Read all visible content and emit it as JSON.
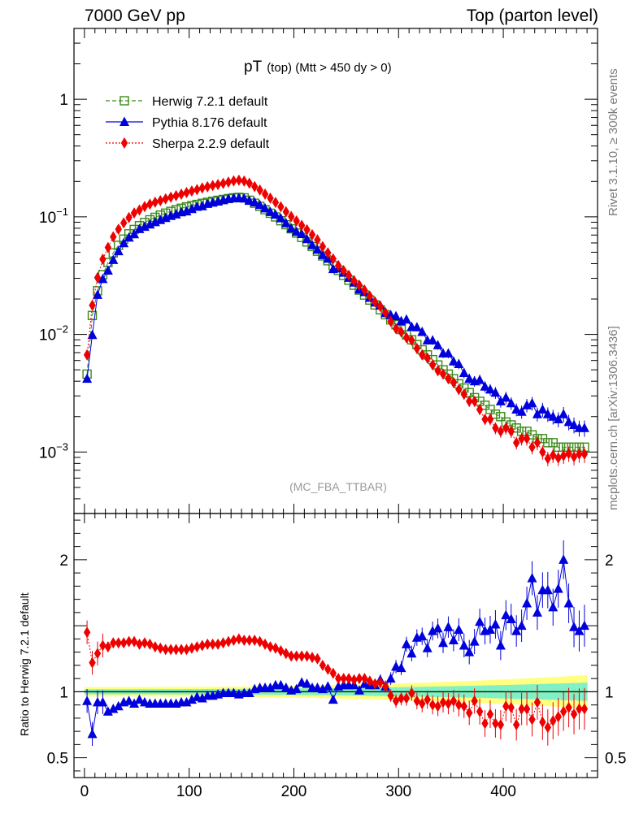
{
  "header": {
    "left": "7000 GeV pp",
    "right": "Top (parton level)"
  },
  "side_labels": {
    "rivet": "Rivet 3.1.10, ≥ 300k events",
    "mcplots": "mcplots.cern.ch [arXiv:1306.3436]"
  },
  "colors": {
    "herwig": "#3a8a1a",
    "pythia": "#0000dd",
    "sherpa": "#ee0000",
    "band_inner": "#7ff0c8",
    "band_outer": "#ffff80"
  },
  "chart_data": [
    {
      "type": "line",
      "scale": "log",
      "title": "pT (top) (Mtt > 450 dy > 0)",
      "title_main": "pT",
      "title_sub": "(top)  (Mtt > 450 dy > 0)",
      "watermark": "(MC_FBA_TTBAR)",
      "xlabel": "",
      "ylabel": "",
      "xlim": [
        -10,
        490
      ],
      "ylim": [
        0.0003,
        4
      ],
      "xticks": [
        0,
        100,
        200,
        300,
        400
      ],
      "yticks": [
        {
          "value": 1,
          "base": "1",
          "exp": ""
        },
        {
          "value": 0.1,
          "base": "10",
          "exp": "−1"
        },
        {
          "value": 0.01,
          "base": "10",
          "exp": "−2"
        },
        {
          "value": 0.001,
          "base": "10",
          "exp": "−3"
        }
      ],
      "legend_position": "top-left",
      "x": [
        2.5,
        7.5,
        12.5,
        17.5,
        22.5,
        27.5,
        32.5,
        37.5,
        42.5,
        47.5,
        52.5,
        57.5,
        62.5,
        67.5,
        72.5,
        77.5,
        82.5,
        87.5,
        92.5,
        97.5,
        102.5,
        107.5,
        112.5,
        117.5,
        122.5,
        127.5,
        132.5,
        137.5,
        142.5,
        147.5,
        152.5,
        157.5,
        162.5,
        167.5,
        172.5,
        177.5,
        182.5,
        187.5,
        192.5,
        197.5,
        202.5,
        207.5,
        212.5,
        217.5,
        222.5,
        227.5,
        232.5,
        237.5,
        242.5,
        247.5,
        252.5,
        257.5,
        262.5,
        267.5,
        272.5,
        277.5,
        282.5,
        287.5,
        292.5,
        297.5,
        302.5,
        307.5,
        312.5,
        317.5,
        322.5,
        327.5,
        332.5,
        337.5,
        342.5,
        347.5,
        352.5,
        357.5,
        362.5,
        367.5,
        372.5,
        377.5,
        382.5,
        387.5,
        392.5,
        397.5,
        402.5,
        407.5,
        412.5,
        417.5,
        422.5,
        427.5,
        432.5,
        437.5,
        442.5,
        447.5,
        452.5,
        457.5,
        462.5,
        467.5,
        472.5,
        477.5
      ],
      "series": [
        {
          "name": "Herwig 7.2.1 default",
          "marker": "open-square",
          "line": "dashed",
          "values": [
            0.0046,
            0.0145,
            0.0235,
            0.0322,
            0.0409,
            0.0493,
            0.0572,
            0.0647,
            0.0717,
            0.0781,
            0.0841,
            0.0895,
            0.0944,
            0.0991,
            0.1035,
            0.1075,
            0.1113,
            0.1149,
            0.1183,
            0.1215,
            0.1246,
            0.1275,
            0.1303,
            0.133,
            0.1357,
            0.1382,
            0.1406,
            0.143,
            0.145,
            0.1465,
            0.145,
            0.1384,
            0.1305,
            0.1227,
            0.1149,
            0.1072,
            0.0998,
            0.0926,
            0.0857,
            0.0791,
            0.0728,
            0.0668,
            0.0611,
            0.0559,
            0.051,
            0.0465,
            0.0423,
            0.0385,
            0.035,
            0.0318,
            0.0289,
            0.0262,
            0.0238,
            0.0216,
            0.0196,
            0.0178,
            0.0162,
            0.0147,
            0.0133,
            0.0121,
            0.011,
            0.0099,
            0.009,
            0.0082,
            0.0074,
            0.0067,
            0.0061,
            0.0055,
            0.005,
            0.0046,
            0.0042,
            0.0038,
            0.0035,
            0.0032,
            0.0029,
            0.0027,
            0.0025,
            0.0023,
            0.0021,
            0.002,
            0.0018,
            0.0017,
            0.0016,
            0.0015,
            0.0015,
            0.0014,
            0.0013,
            0.0013,
            0.0012,
            0.0012,
            0.0011,
            0.0011,
            0.0011,
            0.0011,
            0.0011,
            0.0011
          ]
        },
        {
          "name": "Pythia 8.176 default",
          "marker": "filled-triangle",
          "line": "solid",
          "values": [
            0.0042,
            0.0099,
            0.0217,
            0.0296,
            0.0349,
            0.043,
            0.0511,
            0.0597,
            0.0666,
            0.0712,
            0.0788,
            0.0823,
            0.0862,
            0.0901,
            0.0941,
            0.0979,
            0.1017,
            0.1048,
            0.1093,
            0.1113,
            0.1166,
            0.1218,
            0.1232,
            0.129,
            0.1321,
            0.1351,
            0.1385,
            0.1421,
            0.1441,
            0.1441,
            0.1432,
            0.1372,
            0.1328,
            0.1262,
            0.1181,
            0.1099,
            0.1045,
            0.0972,
            0.0882,
            0.0797,
            0.0746,
            0.0715,
            0.0647,
            0.0574,
            0.0526,
            0.0473,
            0.0441,
            0.036,
            0.0365,
            0.0335,
            0.0303,
            0.0276,
            0.0241,
            0.0229,
            0.0205,
            0.0187,
            0.0176,
            0.0152,
            0.0146,
            0.0143,
            0.013,
            0.0134,
            0.0116,
            0.0115,
            0.0105,
            0.0089,
            0.0089,
            0.0081,
            0.0069,
            0.0069,
            0.0059,
            0.0056,
            0.0047,
            0.0042,
            0.004,
            0.0041,
            0.0036,
            0.0034,
            0.0032,
            0.0027,
            0.0029,
            0.0026,
            0.0023,
            0.0022,
            0.0025,
            0.0026,
            0.0021,
            0.0023,
            0.0021,
            0.002,
            0.0019,
            0.0021,
            0.0018,
            0.0017,
            0.0016,
            0.0016
          ]
        },
        {
          "name": "Sherpa 2.2.9 default",
          "marker": "filled-diamond",
          "line": "dotted",
          "values": [
            0.0067,
            0.0177,
            0.0304,
            0.0436,
            0.0548,
            0.0676,
            0.0785,
            0.0887,
            0.0987,
            0.1078,
            0.1142,
            0.1222,
            0.1282,
            0.1332,
            0.1372,
            0.1423,
            0.1468,
            0.1513,
            0.1559,
            0.1607,
            0.1656,
            0.1704,
            0.1758,
            0.1803,
            0.1845,
            0.1881,
            0.1922,
            0.1973,
            0.2021,
            0.2048,
            0.2015,
            0.193,
            0.1809,
            0.1689,
            0.1562,
            0.1441,
            0.1325,
            0.1217,
            0.1104,
            0.1006,
            0.0924,
            0.0846,
            0.0776,
            0.0705,
            0.0638,
            0.0558,
            0.0495,
            0.0439,
            0.0385,
            0.0349,
            0.0318,
            0.0286,
            0.0262,
            0.0238,
            0.0212,
            0.0189,
            0.0173,
            0.0153,
            0.0129,
            0.0112,
            0.0105,
            0.0094,
            0.0089,
            0.0076,
            0.0067,
            0.0063,
            0.0055,
            0.0049,
            0.0046,
            0.0042,
            0.0039,
            0.0034,
            0.0031,
            0.0027,
            0.0027,
            0.0023,
            0.0019,
            0.0019,
            0.0016,
            0.0015,
            0.0016,
            0.0015,
            0.0012,
            0.0013,
            0.0013,
            0.0011,
            0.0012,
            0.001,
            0.00088,
            0.00094,
            0.00089,
            0.00093,
            0.00097,
            0.00091,
            0.00096,
            0.00096
          ]
        }
      ]
    },
    {
      "type": "line",
      "scale": "linear",
      "ylabel": "Ratio to Herwig 7.2.1 default",
      "xlim": [
        -10,
        490
      ],
      "ylim": [
        0.35,
        2.35
      ],
      "xticks": [
        0,
        100,
        200,
        300,
        400
      ],
      "yticks": [
        0.5,
        1,
        2
      ],
      "ytick_labels": [
        "0.5",
        "1",
        "2"
      ],
      "series": [
        {
          "name": "Pythia 8.176 default",
          "values": [
            0.93,
            0.68,
            0.92,
            0.92,
            0.85,
            0.87,
            0.89,
            0.92,
            0.93,
            0.91,
            0.94,
            0.92,
            0.91,
            0.91,
            0.91,
            0.91,
            0.91,
            0.91,
            0.92,
            0.92,
            0.94,
            0.96,
            0.95,
            0.97,
            0.97,
            0.98,
            0.99,
            0.99,
            0.99,
            0.98,
            0.99,
            0.99,
            1.02,
            1.03,
            1.03,
            1.03,
            1.05,
            1.05,
            1.03,
            1.01,
            1.02,
            1.07,
            1.06,
            1.03,
            1.03,
            1.02,
            1.04,
            0.94,
            1.04,
            1.05,
            1.05,
            1.05,
            1.01,
            1.06,
            1.05,
            1.05,
            1.09,
            1.04,
            1.1,
            1.19,
            1.18,
            1.36,
            1.29,
            1.41,
            1.42,
            1.33,
            1.46,
            1.48,
            1.37,
            1.49,
            1.39,
            1.47,
            1.35,
            1.3,
            1.38,
            1.53,
            1.46,
            1.47,
            1.51,
            1.35,
            1.58,
            1.55,
            1.46,
            1.5,
            1.67,
            1.86,
            1.6,
            1.77,
            1.77,
            1.64,
            1.78,
            2.0,
            1.67,
            1.49,
            1.46,
            1.5
          ]
        },
        {
          "name": "Sherpa 2.2.9 default",
          "values": [
            1.45,
            1.22,
            1.29,
            1.35,
            1.34,
            1.37,
            1.37,
            1.37,
            1.38,
            1.38,
            1.36,
            1.37,
            1.36,
            1.34,
            1.33,
            1.32,
            1.32,
            1.32,
            1.32,
            1.32,
            1.33,
            1.34,
            1.35,
            1.36,
            1.36,
            1.36,
            1.37,
            1.38,
            1.39,
            1.4,
            1.39,
            1.39,
            1.39,
            1.38,
            1.36,
            1.34,
            1.33,
            1.31,
            1.29,
            1.27,
            1.27,
            1.27,
            1.27,
            1.26,
            1.25,
            1.2,
            1.17,
            1.14,
            1.1,
            1.1,
            1.1,
            1.09,
            1.1,
            1.1,
            1.08,
            1.06,
            1.07,
            1.04,
            0.97,
            0.93,
            0.95,
            0.95,
            0.99,
            0.93,
            0.91,
            0.94,
            0.9,
            0.89,
            0.92,
            0.91,
            0.93,
            0.9,
            0.89,
            0.84,
            0.93,
            0.85,
            0.76,
            0.83,
            0.76,
            0.75,
            0.89,
            0.88,
            0.75,
            0.87,
            0.87,
            0.79,
            0.92,
            0.77,
            0.73,
            0.78,
            0.81,
            0.85,
            0.88,
            0.83,
            0.87,
            0.87
          ]
        }
      ]
    }
  ]
}
